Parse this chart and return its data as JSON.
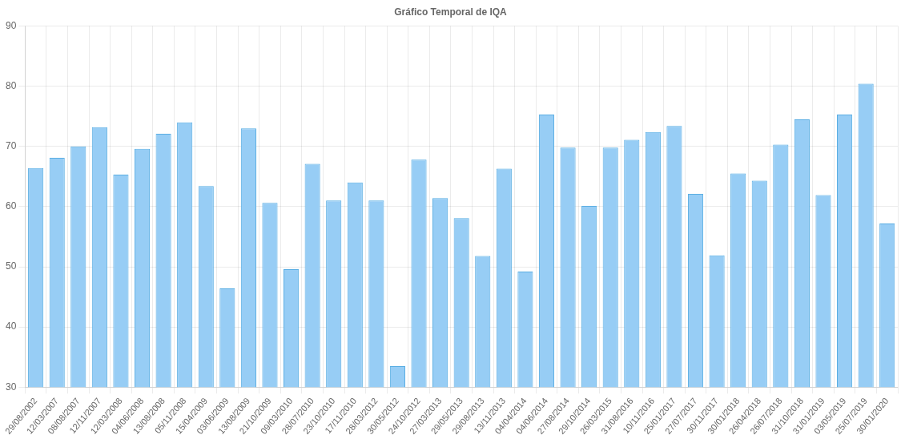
{
  "chart_data": {
    "type": "bar",
    "title": "Gráfico Temporal de IQA",
    "categories": [
      "29/08/2002",
      "12/03/2007",
      "08/08/2007",
      "12/11/2007",
      "12/03/2008",
      "04/06/2008",
      "13/08/2008",
      "05/11/2008",
      "15/04/2009",
      "03/06/2009",
      "13/08/2009",
      "21/10/2009",
      "09/03/2010",
      "28/07/2010",
      "23/10/2010",
      "17/11/2010",
      "28/03/2012",
      "30/05/2012",
      "24/10/2012",
      "27/03/2013",
      "29/05/2013",
      "29/08/2013",
      "13/11/2013",
      "04/04/2014",
      "04/06/2014",
      "27/08/2014",
      "29/10/2014",
      "26/03/2015",
      "31/08/2016",
      "10/11/2016",
      "25/01/2017",
      "27/07/2017",
      "30/11/2017",
      "30/01/2018",
      "26/04/2018",
      "26/07/2018",
      "31/10/2018",
      "31/01/2019",
      "03/05/2019",
      "25/07/2019",
      "30/01/2020"
    ],
    "values": [
      66.4,
      68.1,
      70,
      73.2,
      65.3,
      69.6,
      72.1,
      74,
      63.4,
      46.4,
      73,
      60.6,
      49.6,
      67.1,
      61,
      64,
      61,
      33.5,
      67.8,
      61.4,
      58.1,
      51.8,
      66.3,
      49.2,
      75.3,
      69.8,
      60.1,
      69.8,
      71.1,
      72.4,
      73.4,
      62.1,
      51.9,
      65.5,
      64.3,
      70.3,
      74.5,
      61.9,
      75.3,
      80.4,
      57.2
    ],
    "color": "#97cdf5",
    "ylim": [
      30,
      90
    ],
    "yticks": [
      30,
      40,
      50,
      60,
      70,
      80,
      90
    ],
    "grid": true
  }
}
